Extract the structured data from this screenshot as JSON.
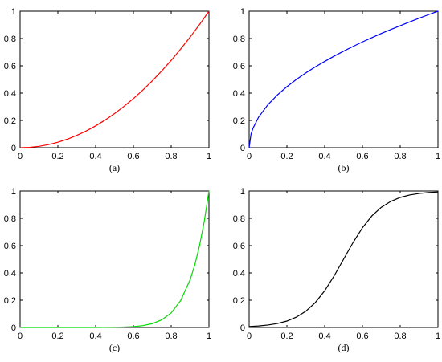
{
  "chart_data": [
    {
      "type": "line",
      "caption": "(a)",
      "xlim": [
        0,
        1
      ],
      "ylim": [
        0,
        1
      ],
      "xticks": [
        "0",
        "0.2",
        "0.4",
        "0.6",
        "0.8",
        "1"
      ],
      "yticks": [
        "0",
        "0.2",
        "0.4",
        "0.6",
        "0.8",
        "1"
      ],
      "grid": false,
      "series": [
        {
          "color": "#ff0000",
          "x": [
            0,
            0.05,
            0.1,
            0.15,
            0.2,
            0.25,
            0.3,
            0.35,
            0.4,
            0.45,
            0.5,
            0.55,
            0.6,
            0.65,
            0.7,
            0.75,
            0.8,
            0.85,
            0.9,
            0.95,
            1
          ],
          "y": [
            0,
            0.0025,
            0.01,
            0.0225,
            0.04,
            0.0625,
            0.09,
            0.1225,
            0.16,
            0.2025,
            0.25,
            0.3025,
            0.36,
            0.4225,
            0.49,
            0.5625,
            0.64,
            0.7225,
            0.81,
            0.9025,
            1
          ]
        }
      ]
    },
    {
      "type": "line",
      "caption": "(b)",
      "xlim": [
        0,
        1
      ],
      "ylim": [
        0,
        1
      ],
      "xticks": [
        "0",
        "0.2",
        "0.4",
        "0.6",
        "0.8",
        "1"
      ],
      "yticks": [
        "0",
        "0.2",
        "0.4",
        "0.6",
        "0.8",
        "1"
      ],
      "grid": false,
      "series": [
        {
          "color": "#0000ff",
          "x": [
            0,
            0.01,
            0.02,
            0.05,
            0.1,
            0.15,
            0.2,
            0.25,
            0.3,
            0.35,
            0.4,
            0.45,
            0.5,
            0.55,
            0.6,
            0.65,
            0.7,
            0.75,
            0.8,
            0.85,
            0.9,
            0.95,
            1
          ],
          "y": [
            0,
            0.1,
            0.141,
            0.224,
            0.316,
            0.387,
            0.447,
            0.5,
            0.548,
            0.592,
            0.632,
            0.671,
            0.707,
            0.742,
            0.775,
            0.806,
            0.837,
            0.866,
            0.894,
            0.922,
            0.949,
            0.975,
            1
          ]
        }
      ]
    },
    {
      "type": "line",
      "caption": "(c)",
      "xlim": [
        0,
        1
      ],
      "ylim": [
        0,
        1
      ],
      "xticks": [
        "0",
        "0.2",
        "0.4",
        "0.6",
        "0.8",
        "1"
      ],
      "yticks": [
        "0",
        "0.2",
        "0.4",
        "0.6",
        "0.8",
        "1"
      ],
      "grid": false,
      "series": [
        {
          "color": "#00dd00",
          "x": [
            0,
            0.1,
            0.2,
            0.3,
            0.4,
            0.5,
            0.55,
            0.6,
            0.65,
            0.7,
            0.75,
            0.8,
            0.85,
            0.9,
            0.925,
            0.95,
            0.975,
            1
          ],
          "y": [
            0,
            0,
            0,
            0,
            0.0001,
            0.001,
            0.0028,
            0.006,
            0.0135,
            0.028,
            0.0563,
            0.107,
            0.197,
            0.349,
            0.458,
            0.599,
            0.776,
            1
          ]
        }
      ]
    },
    {
      "type": "line",
      "caption": "(d)",
      "xlim": [
        0,
        1
      ],
      "ylim": [
        0,
        1
      ],
      "xticks": [
        "0",
        "0.2",
        "0.4",
        "0.6",
        "0.8",
        "1"
      ],
      "yticks": [
        "0",
        "0.2",
        "0.4",
        "0.6",
        "0.8",
        "1"
      ],
      "grid": false,
      "series": [
        {
          "color": "#000000",
          "x": [
            0,
            0.05,
            0.1,
            0.15,
            0.2,
            0.25,
            0.3,
            0.35,
            0.4,
            0.45,
            0.5,
            0.55,
            0.6,
            0.65,
            0.7,
            0.75,
            0.8,
            0.85,
            0.9,
            0.95,
            1
          ],
          "y": [
            0.007,
            0.011,
            0.018,
            0.029,
            0.047,
            0.076,
            0.119,
            0.182,
            0.269,
            0.378,
            0.5,
            0.622,
            0.731,
            0.818,
            0.881,
            0.924,
            0.953,
            0.971,
            0.982,
            0.989,
            0.993
          ]
        }
      ]
    }
  ]
}
